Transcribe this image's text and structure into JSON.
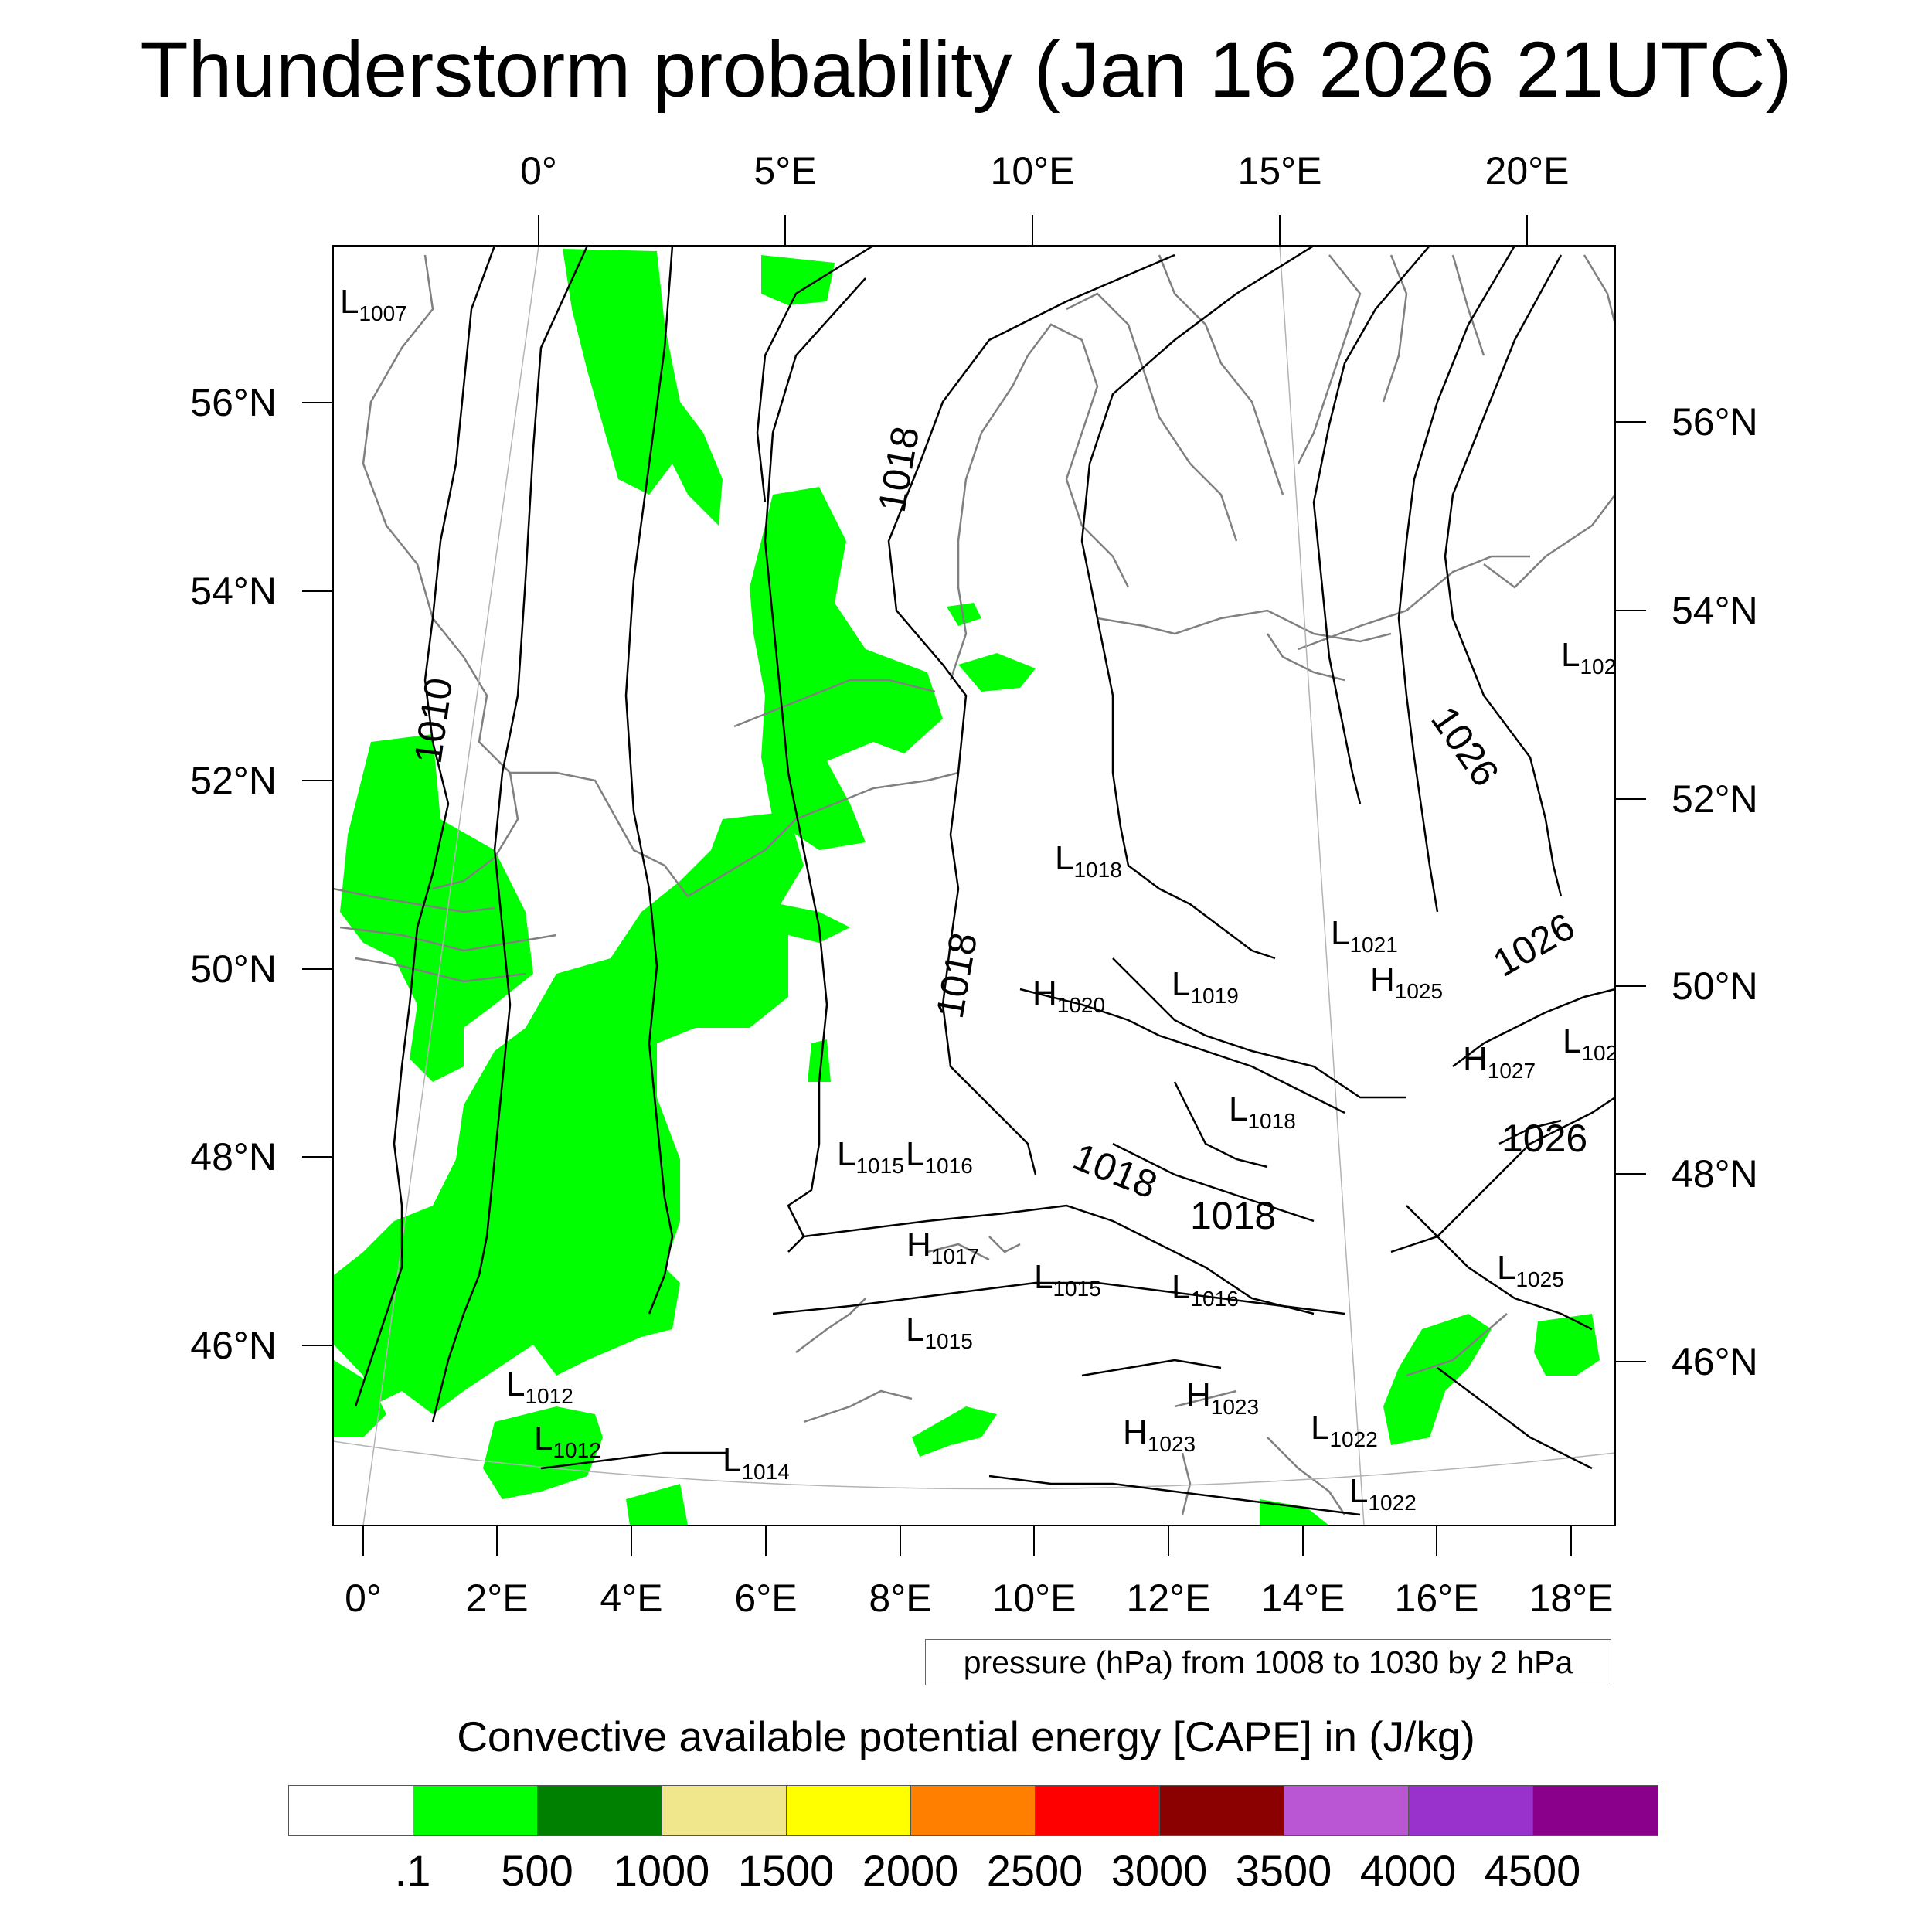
{
  "title": "Thunderstorm probability (Jan 16 2026 21UTC)",
  "map": {
    "top_lon_labels": [
      "0°",
      "5°E",
      "10°E",
      "15°E",
      "20°E"
    ],
    "bottom_lon_labels": [
      "0°",
      "2°E",
      "4°E",
      "6°E",
      "8°E",
      "10°E",
      "12°E",
      "14°E",
      "16°E",
      "18°E"
    ],
    "left_lat_labels": [
      "56°N",
      "54°N",
      "52°N",
      "50°N",
      "48°N",
      "46°N"
    ],
    "right_lat_labels": [
      "56°N",
      "54°N",
      "52°N",
      "50°N",
      "48°N",
      "46°N"
    ],
    "contour_labels": [
      "1010",
      "1018",
      "1018",
      "1018",
      "1018",
      "1026",
      "1026",
      "1026"
    ],
    "pressure_centers": [
      {
        "kind": "L",
        "value": "1007"
      },
      {
        "kind": "L",
        "value": "1018"
      },
      {
        "kind": "L",
        "value": "1021"
      },
      {
        "kind": "H",
        "value": "1025"
      },
      {
        "kind": "H",
        "value": "1020"
      },
      {
        "kind": "L",
        "value": "1019"
      },
      {
        "kind": "H",
        "value": "1027"
      },
      {
        "kind": "L",
        "value": "1018"
      },
      {
        "kind": "L",
        "value": "1015"
      },
      {
        "kind": "L",
        "value": "1016"
      },
      {
        "kind": "H",
        "value": "1017"
      },
      {
        "kind": "L",
        "value": "1015"
      },
      {
        "kind": "L",
        "value": "1016"
      },
      {
        "kind": "L",
        "value": "1015"
      },
      {
        "kind": "L",
        "value": "1025"
      },
      {
        "kind": "L",
        "value": "1012"
      },
      {
        "kind": "L",
        "value": "1012"
      },
      {
        "kind": "L",
        "value": "1014"
      },
      {
        "kind": "H",
        "value": "1023"
      },
      {
        "kind": "H",
        "value": "1023"
      },
      {
        "kind": "L",
        "value": "1022"
      },
      {
        "kind": "L",
        "value": "1022"
      },
      {
        "kind": "L",
        "value": "102"
      },
      {
        "kind": "L",
        "value": "102"
      }
    ],
    "contour_note": "pressure (hPa) from 1008 to 1030 by 2 hPa"
  },
  "colorbar": {
    "title": "Convective available potential energy [CAPE] in (J/kg)",
    "colors": [
      "#ffffff",
      "#00ff00",
      "#008000",
      "#f0e68c",
      "#ffff00",
      "#ff8000",
      "#ff0000",
      "#8b0000",
      "#ba55d3",
      "#9932cc",
      "#8b008b"
    ],
    "labels": [
      ".1",
      "500",
      "1000",
      "1500",
      "2000",
      "2500",
      "3000",
      "3500",
      "4000",
      "4500"
    ]
  }
}
